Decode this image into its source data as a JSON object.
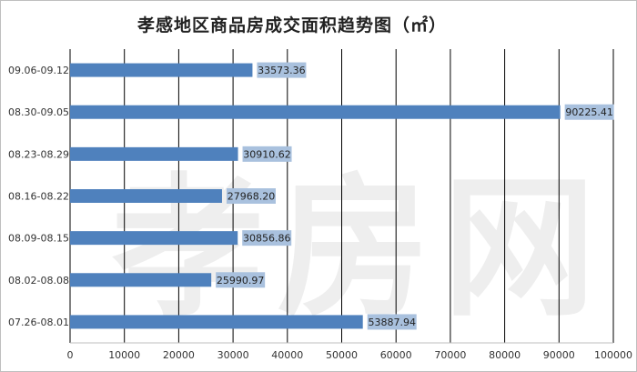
{
  "chart_data": {
    "type": "bar",
    "orientation": "horizontal",
    "title": "孝感地区商品房成交面积趋势图（㎡）",
    "categories": [
      "07.26-08.01",
      "08.02-08.08",
      "08.09-08.15",
      "08.16-08.22",
      "08.23-08.29",
      "08.30-09.05",
      "09.06-09.12"
    ],
    "values": [
      53887.94,
      25990.97,
      30856.86,
      27968.2,
      30910.62,
      90225.41,
      33573.36
    ],
    "value_labels": [
      "53887.94",
      "25990.97",
      "30856.86",
      "27968.20",
      "30910.62",
      "90225.41",
      "33573.36"
    ],
    "x_ticks": [
      "0",
      "10000",
      "20000",
      "30000",
      "40000",
      "50000",
      "60000",
      "70000",
      "80000",
      "90000",
      "100000"
    ],
    "xlim": [
      0,
      100000
    ],
    "grid": "vertical",
    "watermark": "孝房网",
    "colors": {
      "bar": "#4f81bd",
      "label_bg": "#a9c1de",
      "grid": "#000000",
      "watermark": "#eeeeee"
    }
  }
}
